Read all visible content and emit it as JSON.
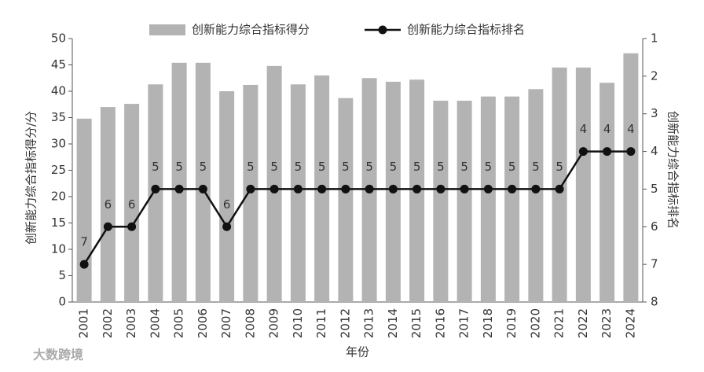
{
  "chart_data": {
    "type": "combo",
    "x_label": "年份",
    "y_label": "创新能力综合指标得分/分",
    "y2_label": "创新能力综合指标排名",
    "watermark": "大数跨境",
    "categories": [
      "2001",
      "2002",
      "2003",
      "2004",
      "2005",
      "2006",
      "2007",
      "2008",
      "2009",
      "2010",
      "2011",
      "2012",
      "2013",
      "2014",
      "2015",
      "2016",
      "2017",
      "2018",
      "2019",
      "2020",
      "2021",
      "2022",
      "2023",
      "2024"
    ],
    "series": [
      {
        "name": "创新能力综合指标得分",
        "type": "bar",
        "color": "#b3b3b3",
        "values": [
          34.8,
          37.0,
          37.6,
          41.3,
          45.4,
          45.4,
          40.0,
          41.2,
          44.8,
          41.3,
          43.0,
          38.7,
          42.5,
          41.8,
          42.2,
          38.2,
          38.2,
          39.0,
          39.0,
          40.4,
          44.5,
          44.5,
          41.6,
          47.2
        ]
      },
      {
        "name": "创新能力综合指标排名",
        "type": "line",
        "axis": "y2",
        "color": "#111111",
        "values": [
          7,
          6,
          6,
          5,
          5,
          5,
          6,
          5,
          5,
          5,
          5,
          5,
          5,
          5,
          5,
          5,
          5,
          5,
          5,
          5,
          5,
          4,
          4,
          4
        ]
      }
    ],
    "ylim": [
      0,
      50
    ],
    "yticks": [
      0,
      5,
      10,
      15,
      20,
      25,
      30,
      35,
      40,
      45,
      50
    ],
    "y2lim": [
      8,
      1
    ],
    "y2ticks": [
      1,
      2,
      3,
      4,
      5,
      6,
      7,
      8
    ],
    "legend": "top"
  }
}
